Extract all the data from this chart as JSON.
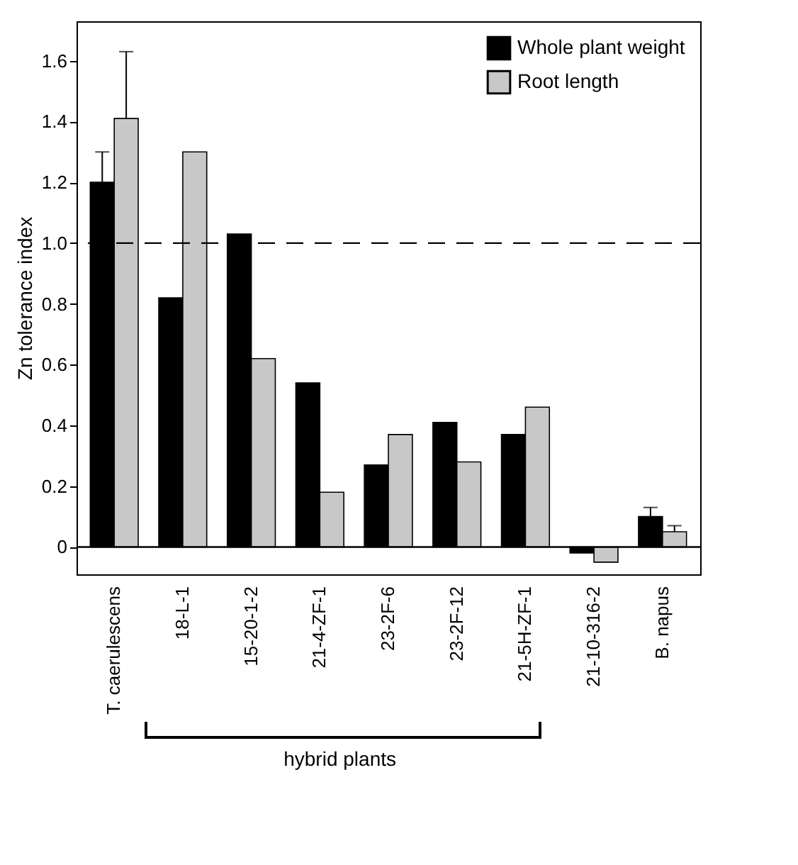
{
  "chart_data": {
    "type": "bar",
    "ylabel": "Zn tolerance index",
    "categories": [
      "T. caerulescens",
      "18-L-1",
      "15-20-1-2",
      "21-4-ZF-1",
      "23-2F-6",
      "23-2F-12",
      "21-5H-ZF-1",
      "21-10-316-2",
      "B. napus"
    ],
    "series": [
      {
        "name": "Whole plant weight",
        "color": "#000000",
        "values": [
          1.2,
          0.82,
          1.03,
          0.54,
          0.27,
          0.41,
          0.37,
          -0.02,
          0.1
        ],
        "errors": [
          [
            1.2,
            1.3
          ],
          null,
          null,
          null,
          null,
          null,
          null,
          null,
          [
            0.1,
            0.13
          ]
        ]
      },
      {
        "name": "Root length",
        "color": "#c8c8c8",
        "values": [
          1.41,
          1.3,
          0.62,
          0.18,
          0.37,
          0.28,
          0.46,
          -0.05,
          0.05
        ],
        "errors": [
          [
            1.41,
            1.63
          ],
          null,
          null,
          null,
          null,
          null,
          null,
          null,
          [
            0.05,
            0.07
          ]
        ]
      }
    ],
    "ylim": [
      -0.09,
      1.73
    ],
    "yticks": [
      0,
      0.2,
      0.4,
      0.6,
      0.8,
      {
        "value": 1,
        "label": "1.0"
      },
      1.2,
      1.4,
      1.6
    ],
    "ref_lines": [
      {
        "axis": "y",
        "value": 1,
        "line_style": "dashed",
        "color": "#000000"
      },
      {
        "axis": "y",
        "value": 0,
        "line_style": "solid",
        "color": "#000000"
      }
    ],
    "annotations": [
      "hybrid plants"
    ],
    "legend": "top right",
    "grid": false
  }
}
